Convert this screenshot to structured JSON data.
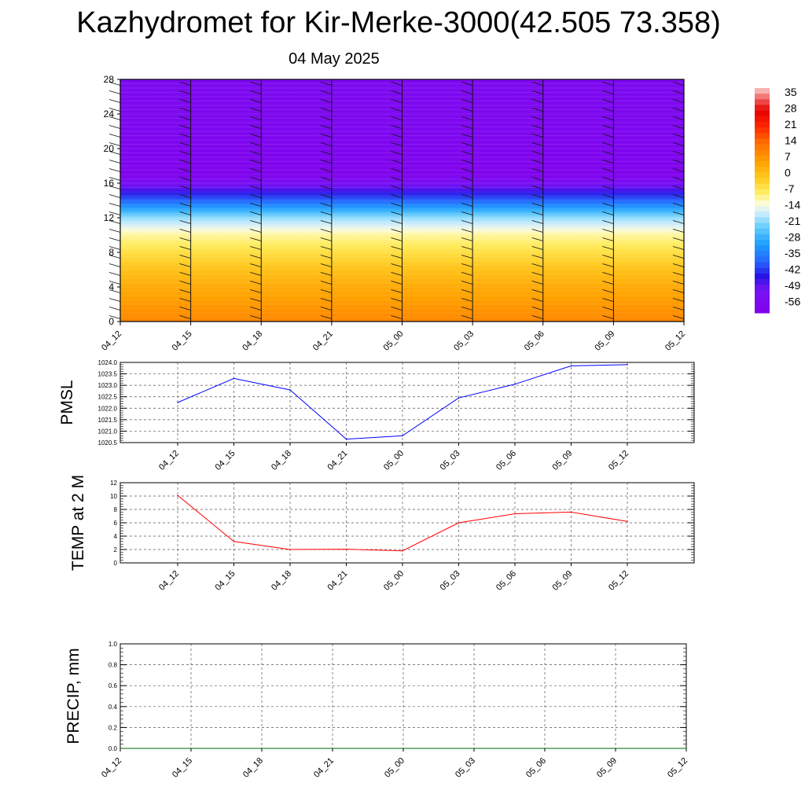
{
  "title": "Kazhydromet for Kir-Merke-3000(42.505 73.358)",
  "date": "04 May 2025",
  "colors": {
    "pmsl_line": "#0000ff",
    "temp_line": "#ff0000",
    "precip_line": "#006400"
  },
  "chart_data": [
    {
      "type": "heatmap",
      "xticks": [
        "04_12",
        "04_15",
        "04_18",
        "04_21",
        "05_00",
        "05_03",
        "05_06",
        "05_09",
        "05_12"
      ],
      "ylim": [
        0,
        28
      ],
      "yticks": [
        0,
        4,
        8,
        12,
        16,
        20,
        24,
        28
      ],
      "colorbar": {
        "labels": [
          "35",
          "28",
          "21",
          "14",
          "7",
          "0",
          "-7",
          "-14",
          "-21",
          "-28",
          "-35",
          "-42",
          "-49",
          "-56"
        ],
        "range": [
          -60,
          38
        ]
      },
      "profile": [
        {
          "z": 0,
          "t": 10
        },
        {
          "z": 2,
          "t": 7
        },
        {
          "z": 4,
          "t": 4
        },
        {
          "z": 6,
          "t": 0
        },
        {
          "z": 8,
          "t": -5
        },
        {
          "z": 10,
          "t": -10
        },
        {
          "z": 12,
          "t": -20
        },
        {
          "z": 14,
          "t": -38
        },
        {
          "z": 16,
          "t": -52
        },
        {
          "z": 17,
          "t": -58
        },
        {
          "z": 19,
          "t": -57
        },
        {
          "z": 22,
          "t": -56
        },
        {
          "z": 28,
          "t": -55
        }
      ]
    },
    {
      "type": "line",
      "ylabel": "PMSL",
      "x": [
        "04_12",
        "04_15",
        "04_18",
        "04_21",
        "05_00",
        "05_03",
        "05_06",
        "05_09",
        "05_12"
      ],
      "ylim": [
        1020.5,
        1024.0
      ],
      "yticks": [
        "1020.5",
        "1021.0",
        "1021.5",
        "1022.0",
        "1022.5",
        "1023.0",
        "1023.5",
        "1024.0"
      ],
      "series": [
        {
          "values": [
            1022.25,
            1023.3,
            1022.8,
            1020.65,
            1020.8,
            1022.45,
            1023.05,
            1023.85,
            1023.9
          ]
        }
      ]
    },
    {
      "type": "line",
      "ylabel": "TEMP at 2 M",
      "x": [
        "04_12",
        "04_15",
        "04_18",
        "04_21",
        "05_00",
        "05_03",
        "05_06",
        "05_09",
        "05_12"
      ],
      "ylim": [
        0,
        12
      ],
      "yticks": [
        "0",
        "2",
        "4",
        "6",
        "8",
        "10",
        "12"
      ],
      "series": [
        {
          "values": [
            10.1,
            3.2,
            2.0,
            2.05,
            1.8,
            6.0,
            7.35,
            7.6,
            6.2
          ]
        }
      ]
    },
    {
      "type": "line",
      "ylabel": "PRECIP, mm",
      "x": [
        "04_12",
        "04_15",
        "04_18",
        "04_21",
        "05_00",
        "05_03",
        "05_06",
        "05_09",
        "05_12"
      ],
      "ylim": [
        0,
        1
      ],
      "yticks": [
        "0.0",
        "0.2",
        "0.4",
        "0.6",
        "0.8",
        "1.0"
      ],
      "series": [
        {
          "values": [
            0,
            0,
            0,
            0,
            0,
            0,
            0,
            0,
            0
          ]
        }
      ]
    }
  ]
}
